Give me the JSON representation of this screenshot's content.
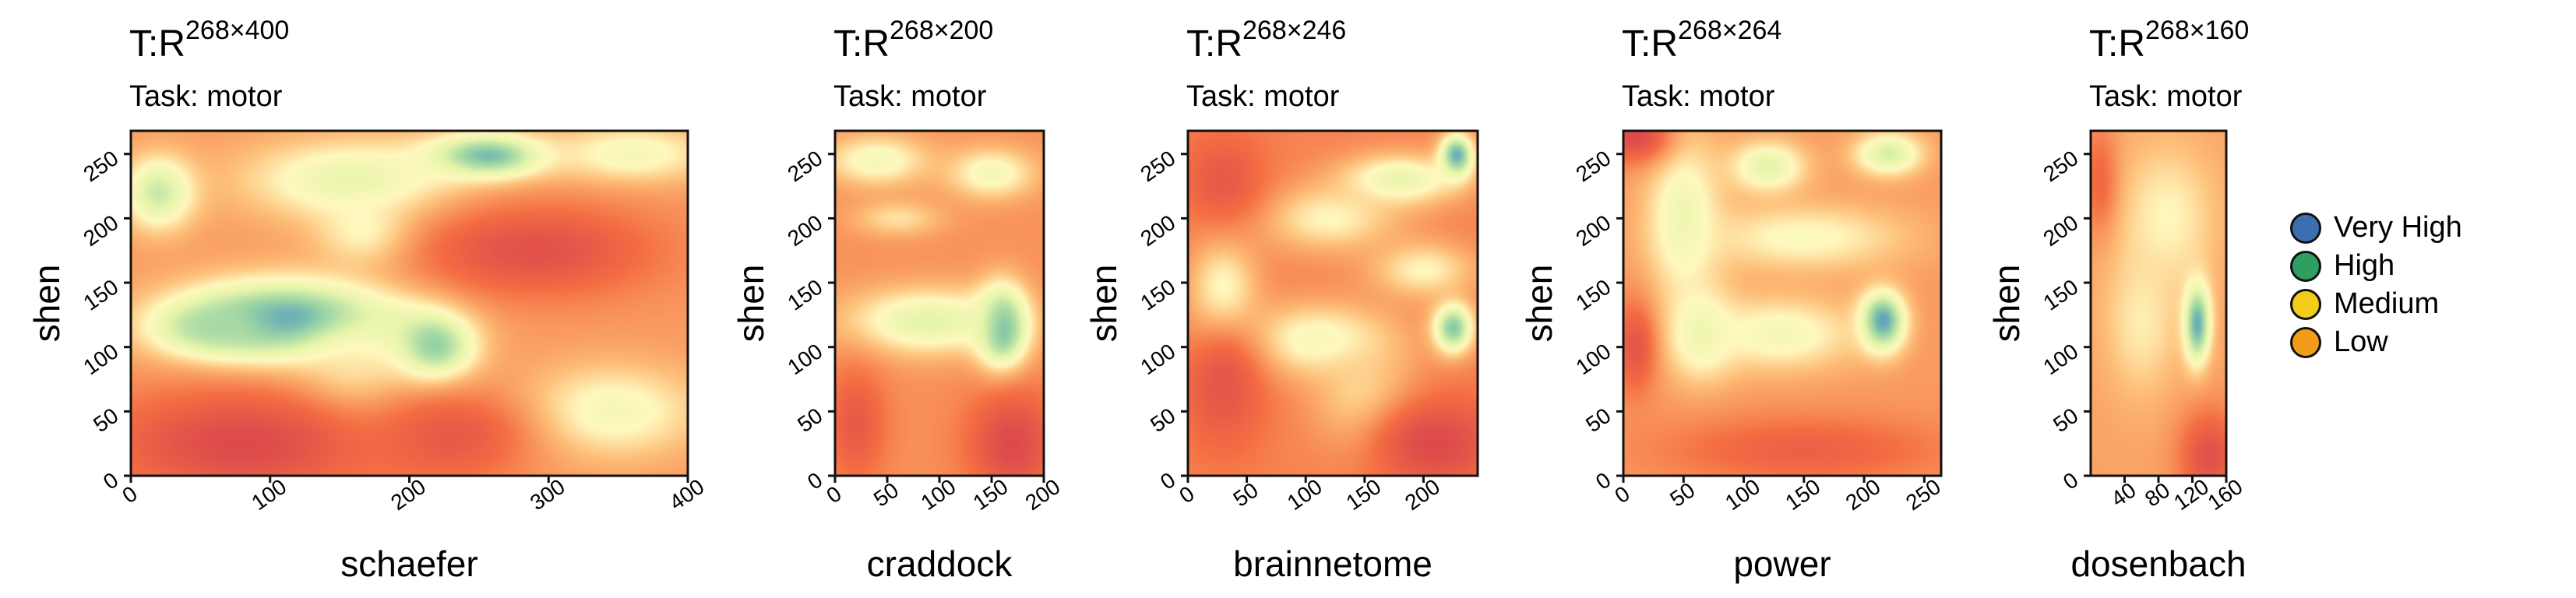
{
  "chart_data": [
    {
      "type": "heatmap",
      "title": "T:R",
      "title_superscript": "268×400",
      "subtitle": "Task: motor",
      "xlabel": "schaefer",
      "ylabel": "shen",
      "xlim": [
        0,
        400
      ],
      "ylim": [
        0,
        268
      ],
      "xticks": [
        0,
        100,
        200,
        300,
        400
      ],
      "xtick_labels": [
        "0",
        "100",
        "200",
        "300",
        "400"
      ],
      "yticks": [
        0,
        50,
        100,
        150,
        200,
        250
      ],
      "ytick_labels": [
        "0",
        "50",
        "100",
        "150",
        "200",
        "250"
      ],
      "base": 0.3,
      "hotspots": [
        {
          "x": 115,
          "y": 120,
          "value": 0.95,
          "sx": 55,
          "sy": 22
        },
        {
          "x": 60,
          "y": 115,
          "value": 0.75,
          "sx": 30,
          "sy": 15
        },
        {
          "x": 215,
          "y": 100,
          "value": 0.85,
          "sx": 22,
          "sy": 20
        },
        {
          "x": 255,
          "y": 248,
          "value": 0.9,
          "sx": 30,
          "sy": 12
        },
        {
          "x": 20,
          "y": 220,
          "value": 0.68,
          "sx": 18,
          "sy": 20
        },
        {
          "x": 160,
          "y": 230,
          "value": 0.6,
          "sx": 55,
          "sy": 22
        },
        {
          "x": 360,
          "y": 250,
          "value": 0.55,
          "sx": 40,
          "sy": 16
        },
        {
          "x": 170,
          "y": 190,
          "value": 0.55,
          "sx": 25,
          "sy": 20
        },
        {
          "x": 345,
          "y": 50,
          "value": 0.55,
          "sx": 45,
          "sy": 25
        },
        {
          "x": 160,
          "y": 80,
          "value": 0.5,
          "sx": 30,
          "sy": 30
        }
      ],
      "coldspots": [
        {
          "x": 80,
          "y": 25,
          "value": 0.05,
          "sx": 70,
          "sy": 30
        },
        {
          "x": 290,
          "y": 175,
          "value": 0.08,
          "sx": 60,
          "sy": 25
        },
        {
          "x": 230,
          "y": 30,
          "value": 0.12,
          "sx": 40,
          "sy": 25
        }
      ]
    },
    {
      "type": "heatmap",
      "title": "T:R",
      "title_superscript": "268×200",
      "subtitle": "Task: motor",
      "xlabel": "craddock",
      "ylabel": "shen",
      "xlim": [
        0,
        200
      ],
      "ylim": [
        0,
        268
      ],
      "xticks": [
        0,
        50,
        100,
        150,
        200
      ],
      "xtick_labels": [
        "0",
        "50",
        "100",
        "150",
        "200"
      ],
      "yticks": [
        0,
        50,
        100,
        150,
        200,
        250
      ],
      "ytick_labels": [
        "0",
        "50",
        "100",
        "150",
        "200",
        "250"
      ],
      "base": 0.28,
      "hotspots": [
        {
          "x": 160,
          "y": 115,
          "value": 0.95,
          "sx": 17,
          "sy": 22
        },
        {
          "x": 90,
          "y": 120,
          "value": 0.62,
          "sx": 55,
          "sy": 18
        },
        {
          "x": 40,
          "y": 245,
          "value": 0.55,
          "sx": 35,
          "sy": 14
        },
        {
          "x": 150,
          "y": 235,
          "value": 0.55,
          "sx": 30,
          "sy": 14
        },
        {
          "x": 60,
          "y": 200,
          "value": 0.45,
          "sx": 30,
          "sy": 10
        }
      ],
      "coldspots": [
        {
          "x": 170,
          "y": 25,
          "value": 0.05,
          "sx": 30,
          "sy": 30
        },
        {
          "x": 20,
          "y": 40,
          "value": 0.12,
          "sx": 20,
          "sy": 30
        }
      ]
    },
    {
      "type": "heatmap",
      "title": "T:R",
      "title_superscript": "268×246",
      "subtitle": "Task: motor",
      "xlabel": "brainnetome",
      "ylabel": "shen",
      "xlim": [
        0,
        246
      ],
      "ylim": [
        0,
        268
      ],
      "xticks": [
        0,
        50,
        100,
        150,
        200
      ],
      "xtick_labels": [
        "0",
        "50",
        "100",
        "150",
        "200"
      ],
      "yticks": [
        0,
        50,
        100,
        150,
        200,
        250
      ],
      "ytick_labels": [
        "0",
        "50",
        "100",
        "150",
        "200",
        "250"
      ],
      "base": 0.25,
      "hotspots": [
        {
          "x": 228,
          "y": 248,
          "value": 0.92,
          "sx": 10,
          "sy": 12
        },
        {
          "x": 225,
          "y": 115,
          "value": 0.82,
          "sx": 12,
          "sy": 14
        },
        {
          "x": 180,
          "y": 230,
          "value": 0.6,
          "sx": 35,
          "sy": 14
        },
        {
          "x": 110,
          "y": 105,
          "value": 0.55,
          "sx": 45,
          "sy": 20
        },
        {
          "x": 30,
          "y": 140,
          "value": 0.55,
          "sx": 20,
          "sy": 30
        },
        {
          "x": 120,
          "y": 200,
          "value": 0.5,
          "sx": 40,
          "sy": 18
        },
        {
          "x": 200,
          "y": 160,
          "value": 0.5,
          "sx": 30,
          "sy": 15
        },
        {
          "x": 150,
          "y": 60,
          "value": 0.45,
          "sx": 30,
          "sy": 30
        }
      ],
      "coldspots": [
        {
          "x": 210,
          "y": 25,
          "value": 0.05,
          "sx": 40,
          "sy": 25
        },
        {
          "x": 30,
          "y": 70,
          "value": 0.1,
          "sx": 25,
          "sy": 35
        },
        {
          "x": 30,
          "y": 230,
          "value": 0.12,
          "sx": 25,
          "sy": 25
        }
      ]
    },
    {
      "type": "heatmap",
      "title": "T:R",
      "title_superscript": "268×264",
      "subtitle": "Task: motor",
      "xlabel": "power",
      "ylabel": "shen",
      "xlim": [
        0,
        264
      ],
      "ylim": [
        0,
        268
      ],
      "xticks": [
        0,
        50,
        100,
        150,
        200,
        250
      ],
      "xtick_labels": [
        "0",
        "50",
        "100",
        "150",
        "200",
        "250"
      ],
      "yticks": [
        0,
        50,
        100,
        150,
        200,
        250
      ],
      "ytick_labels": [
        "0",
        "50",
        "100",
        "150",
        "200",
        "250"
      ],
      "base": 0.3,
      "hotspots": [
        {
          "x": 215,
          "y": 120,
          "value": 0.95,
          "sx": 13,
          "sy": 16
        },
        {
          "x": 120,
          "y": 240,
          "value": 0.62,
          "sx": 22,
          "sy": 14
        },
        {
          "x": 220,
          "y": 250,
          "value": 0.65,
          "sx": 20,
          "sy": 12
        },
        {
          "x": 50,
          "y": 200,
          "value": 0.58,
          "sx": 22,
          "sy": 45
        },
        {
          "x": 65,
          "y": 110,
          "value": 0.58,
          "sx": 20,
          "sy": 25
        },
        {
          "x": 130,
          "y": 110,
          "value": 0.55,
          "sx": 45,
          "sy": 20
        },
        {
          "x": 150,
          "y": 185,
          "value": 0.52,
          "sx": 60,
          "sy": 18
        }
      ],
      "coldspots": [
        {
          "x": 10,
          "y": 265,
          "value": 0.05,
          "sx": 20,
          "sy": 15
        },
        {
          "x": 10,
          "y": 100,
          "value": 0.1,
          "sx": 12,
          "sy": 25
        },
        {
          "x": 150,
          "y": 20,
          "value": 0.15,
          "sx": 80,
          "sy": 18
        }
      ]
    },
    {
      "type": "heatmap",
      "title": "T:R",
      "title_superscript": "268×160",
      "subtitle": "Task: motor",
      "xlabel": "dosenbach",
      "ylabel": "shen",
      "xlim": [
        0,
        160
      ],
      "ylim": [
        0,
        268
      ],
      "xticks": [
        40,
        80,
        120,
        160
      ],
      "xtick_labels": [
        "40",
        "80",
        "120",
        "160"
      ],
      "yticks": [
        0,
        50,
        100,
        150,
        200,
        250
      ],
      "ytick_labels": [
        "0",
        "50",
        "100",
        "150",
        "200",
        "250"
      ],
      "base": 0.32,
      "hotspots": [
        {
          "x": 125,
          "y": 120,
          "value": 0.95,
          "sx": 11,
          "sy": 22
        },
        {
          "x": 90,
          "y": 200,
          "value": 0.5,
          "sx": 40,
          "sy": 40
        },
        {
          "x": 60,
          "y": 120,
          "value": 0.48,
          "sx": 30,
          "sy": 40
        }
      ],
      "coldspots": [
        {
          "x": 140,
          "y": 15,
          "value": 0.08,
          "sx": 25,
          "sy": 25
        },
        {
          "x": 10,
          "y": 230,
          "value": 0.18,
          "sx": 15,
          "sy": 30
        }
      ]
    }
  ],
  "legend": {
    "items": [
      {
        "label": "Very High",
        "color": "#3b6fae"
      },
      {
        "label": "High",
        "color": "#2e9e61"
      },
      {
        "label": "Medium",
        "color": "#f1cc1b"
      },
      {
        "label": "Low",
        "color": "#f39c1a"
      }
    ]
  }
}
